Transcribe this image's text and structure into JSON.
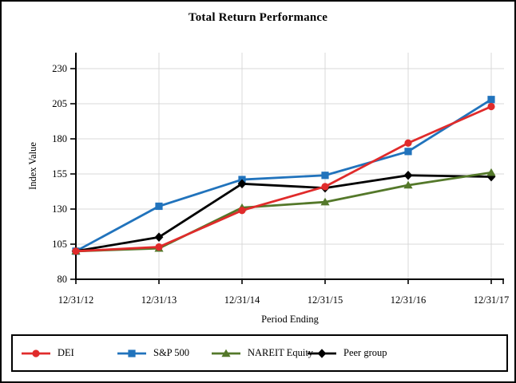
{
  "chart_data": {
    "type": "line",
    "title": "Total Return Performance",
    "xlabel": "Period Ending",
    "ylabel": "Index Value",
    "categories": [
      "12/31/12",
      "12/31/13",
      "12/31/14",
      "12/31/15",
      "12/31/16",
      "12/31/17"
    ],
    "yticks": [
      80,
      105,
      130,
      155,
      180,
      205,
      230
    ],
    "ylim": [
      80,
      230
    ],
    "grid": true,
    "legend_position": "bottom",
    "background": "#ffffff",
    "border_color": "#000000",
    "grid_color": "#d9d9d9",
    "axis_color": "#000000",
    "series": [
      {
        "name": "DEI",
        "color": "#e02b2b",
        "marker": "circle",
        "values": [
          100,
          103,
          129,
          146,
          177,
          203
        ]
      },
      {
        "name": "S&P 500",
        "color": "#2173bc",
        "marker": "square",
        "values": [
          100,
          132,
          151,
          154,
          171,
          208
        ]
      },
      {
        "name": "NAREIT Equity",
        "color": "#54782a",
        "marker": "triangle",
        "values": [
          100,
          102,
          131,
          135,
          147,
          156
        ]
      },
      {
        "name": "Peer group",
        "color": "#000000",
        "marker": "diamond",
        "values": [
          100,
          110,
          148,
          145,
          154,
          153
        ]
      }
    ]
  }
}
